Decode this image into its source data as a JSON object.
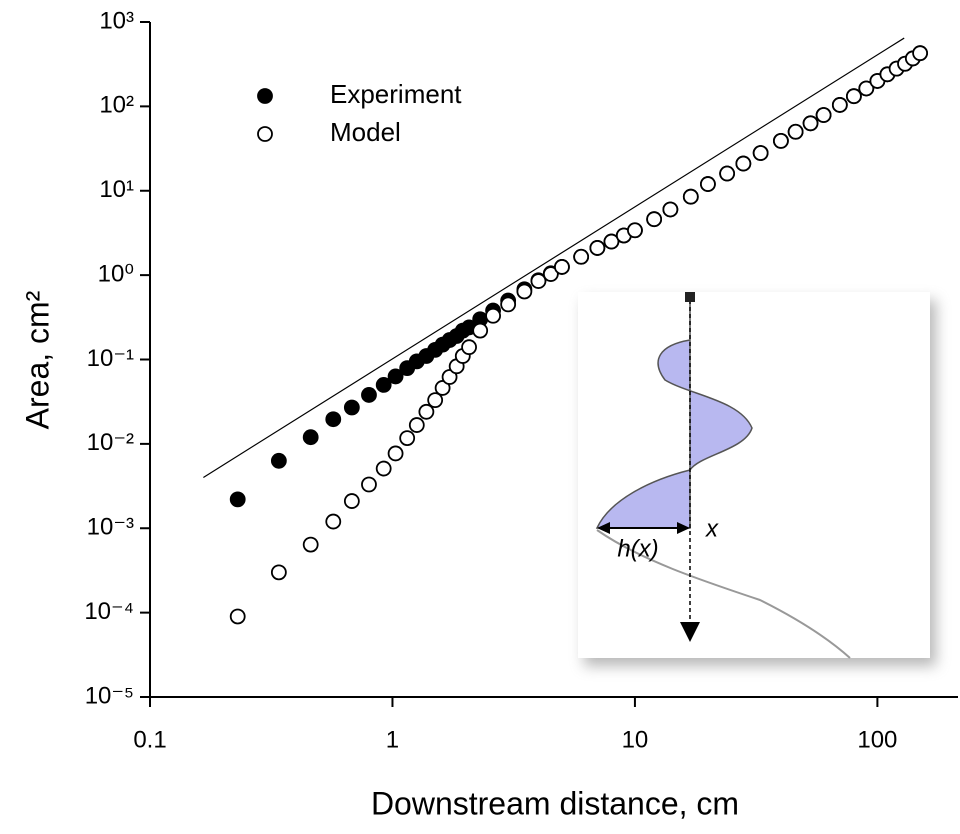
{
  "chart_data": {
    "type": "scatter",
    "x_label": "Downstream distance, cm",
    "y_label": "Area, cm²",
    "log_x": true,
    "log_y": true,
    "legend": "upper left",
    "xlim": [
      0.1,
      215
    ],
    "ylim": [
      1e-05,
      1000
    ],
    "xticks": [
      0.1,
      1,
      10,
      100
    ],
    "yticks": [
      {
        "value": 1e-05,
        "label": "10⁻⁵"
      },
      {
        "value": 0.0001,
        "label": "10⁻⁴"
      },
      {
        "value": 0.001,
        "label": "10⁻³"
      },
      {
        "value": 0.01,
        "label": "10⁻²"
      },
      {
        "value": 0.1,
        "label": "10⁻¹"
      },
      {
        "value": 1,
        "label": "10⁰"
      },
      {
        "value": 10,
        "label": "10¹"
      },
      {
        "value": 100,
        "label": "10²"
      },
      {
        "value": 1000,
        "label": "10³"
      }
    ],
    "x": [
      0.23,
      0.34,
      0.46,
      0.57,
      0.68,
      0.8,
      0.92,
      1.03,
      1.15,
      1.26,
      1.38,
      1.5,
      1.61,
      1.72,
      1.84,
      1.95,
      2.07,
      2.3,
      2.6,
      3,
      3.5,
      4,
      4.5,
      5,
      6,
      7,
      8,
      9,
      10,
      12,
      14,
      17,
      20,
      24,
      28,
      33,
      40,
      46,
      53,
      60,
      70,
      80,
      90,
      100,
      110,
      120,
      130,
      140,
      150
    ],
    "series": [
      {
        "name": "Experiment",
        "color": "#000000",
        "filled": true,
        "values": [
          0.0022,
          0.0063,
          0.012,
          0.0196,
          0.027,
          0.038,
          0.05,
          0.063,
          0.079,
          0.095,
          0.11,
          0.13,
          0.15,
          0.17,
          0.19,
          0.22,
          0.24,
          0.3,
          0.38,
          0.5,
          0.68,
          0.87,
          1.05,
          1.25,
          1.65,
          2.1,
          2.5,
          2.95,
          3.4,
          4.6,
          6,
          8.5,
          12,
          16,
          21,
          28,
          39,
          50,
          63,
          79,
          104,
          132,
          163,
          200,
          240,
          280,
          320,
          370,
          427
        ]
      },
      {
        "name": "Model",
        "color": "#000000",
        "filled": false,
        "values": [
          9e-05,
          0.0003,
          0.00064,
          0.0012,
          0.0021,
          0.0033,
          0.0051,
          0.0077,
          0.0117,
          0.0167,
          0.024,
          0.033,
          0.046,
          0.062,
          0.083,
          0.11,
          0.14,
          0.22,
          0.33,
          0.45,
          0.64,
          0.85,
          1.03,
          1.25,
          1.65,
          2.1,
          2.5,
          2.95,
          3.4,
          4.6,
          6,
          8.5,
          12,
          16,
          21,
          28,
          39,
          50,
          63,
          79,
          104,
          132,
          163,
          200,
          240,
          280,
          320,
          370,
          427
        ]
      }
    ],
    "fit_line": {
      "x": [
        0.166,
        129
      ],
      "values": [
        0.004,
        645
      ],
      "color": "#000000"
    },
    "inset": {
      "h_label": "h(x)",
      "x_label": "x"
    }
  }
}
